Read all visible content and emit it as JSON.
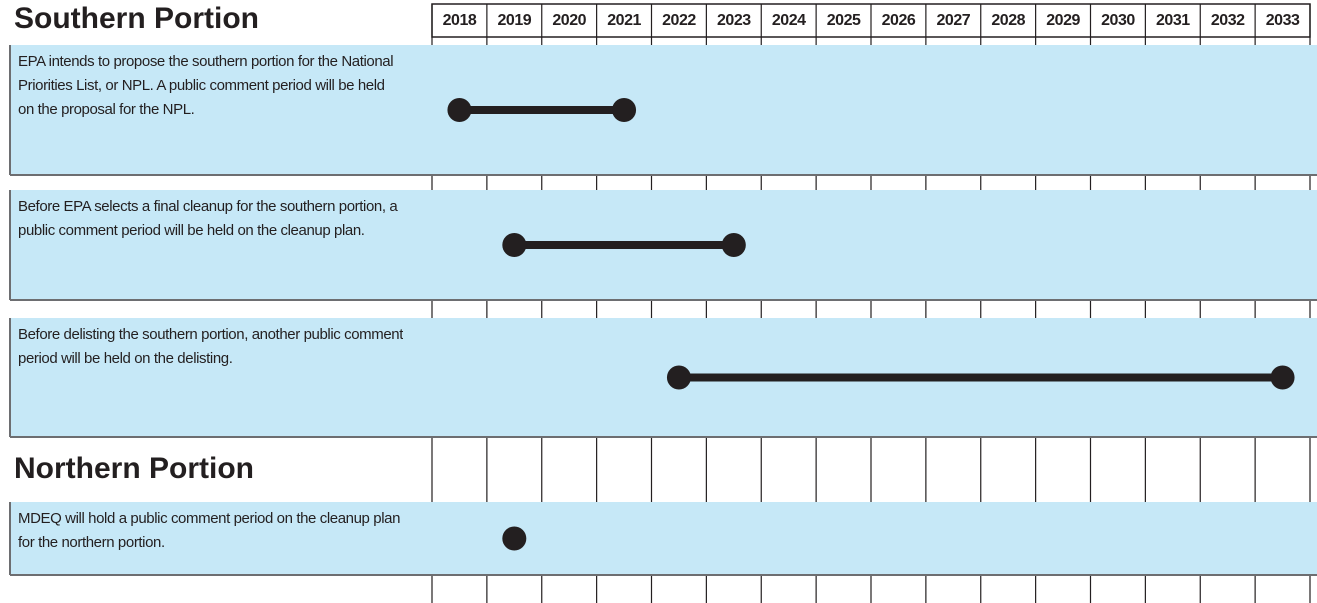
{
  "chart_data": {
    "type": "timeline",
    "categories": [
      2018,
      2019,
      2020,
      2021,
      2022,
      2023,
      2024,
      2025,
      2026,
      2027,
      2028,
      2029,
      2030,
      2031,
      2032,
      2033
    ],
    "band_color": "#c6e8f7",
    "mark_color": "#231f20",
    "sections": [
      {
        "title": "Southern Portion",
        "items": [
          {
            "text": "EPA intends to propose the southern portion for the National Priorities List, or NPL. A public comment period will be held on the proposal for the NPL.",
            "start": 2018,
            "end": 2021
          },
          {
            "text": "Before EPA selects a final cleanup for the southern portion, a public comment period will be held on the cleanup plan.",
            "start": 2019,
            "end": 2023
          },
          {
            "text": "Before delisting the southern portion, another public comment period will be held on the delisting.",
            "start": 2022,
            "end": 2033
          }
        ]
      },
      {
        "title": "Northern Portion",
        "items": [
          {
            "text": "MDEQ will hold a public comment period on the cleanup plan for the northern portion.",
            "start": 2019
          }
        ]
      }
    ]
  }
}
